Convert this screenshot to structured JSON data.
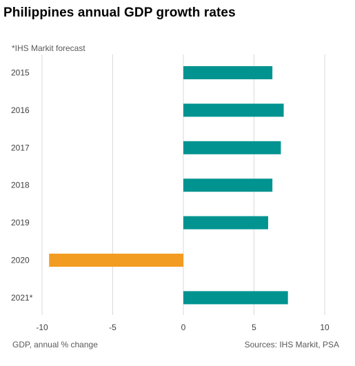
{
  "title": "Philippines annual GDP growth rates",
  "note": "*IHS Markit forecast",
  "footer": {
    "xlabel": "GDP, annual % change",
    "source": "Sources: IHS Markit, PSA"
  },
  "chart_data": {
    "type": "bar",
    "orientation": "horizontal",
    "categories": [
      "2015",
      "2016",
      "2017",
      "2018",
      "2019",
      "2020",
      "2021*"
    ],
    "values": [
      6.3,
      7.1,
      6.9,
      6.3,
      6.0,
      -9.5,
      7.4
    ],
    "xlim": [
      -10,
      10
    ],
    "xticks": [
      -10,
      -5,
      0,
      5,
      10
    ],
    "grid": "vertical",
    "colors": {
      "positive": "#009390",
      "negative": "#f39c22",
      "grid": "#d9d9d9"
    }
  }
}
